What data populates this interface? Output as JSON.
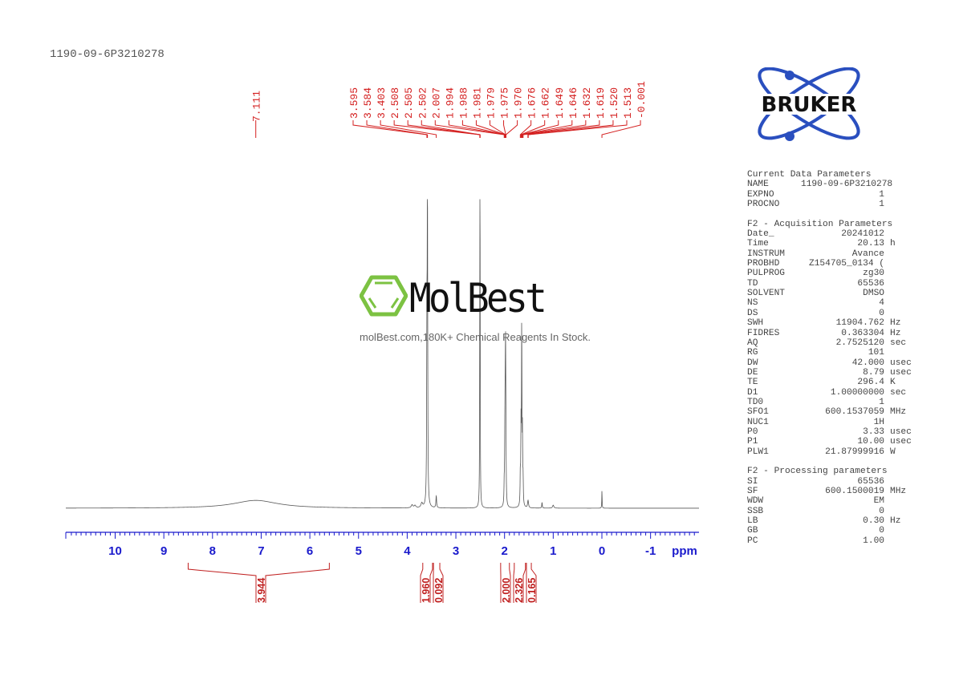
{
  "title": "1190-09-6P3210278",
  "logos": {
    "bruker": "BRUKER",
    "molbest_name": "MolBest",
    "molbest_tagline": "molBest.com,180K+ Chemical Reagents In Stock."
  },
  "colors": {
    "spectrum": "#555555",
    "peak_labels": "#d42020",
    "axis": "#1a1acc",
    "integrals": "#c02020",
    "bruker_blue": "#2a4fbf",
    "molbest_green": "#7cc242"
  },
  "chart_data": {
    "type": "line",
    "title": "",
    "xlabel": "ppm",
    "xlim": [
      11.0,
      -2.0
    ],
    "x_reversed": true,
    "x_ticks": [
      "10",
      "9",
      "8",
      "7",
      "6",
      "5",
      "4",
      "3",
      "2",
      "1",
      "0",
      "-1"
    ],
    "grid": false,
    "peaks": [
      {
        "ppm": 7.111,
        "intensity": 0.026,
        "width": 0.55
      },
      {
        "ppm": 3.9,
        "intensity": 0.01,
        "width": 0.02
      },
      {
        "ppm": 3.84,
        "intensity": 0.008,
        "width": 0.02
      },
      {
        "ppm": 3.7,
        "intensity": 0.015,
        "width": 0.02
      },
      {
        "ppm": 3.595,
        "intensity": 0.5,
        "width": 0.006
      },
      {
        "ppm": 3.584,
        "intensity": 1.0,
        "width": 0.006
      },
      {
        "ppm": 3.403,
        "intensity": 0.04,
        "width": 0.008
      },
      {
        "ppm": 2.508,
        "intensity": 0.3,
        "width": 0.004
      },
      {
        "ppm": 2.505,
        "intensity": 0.76,
        "width": 0.004
      },
      {
        "ppm": 2.502,
        "intensity": 0.3,
        "width": 0.004
      },
      {
        "ppm": 2.007,
        "intensity": 0.06,
        "width": 0.005
      },
      {
        "ppm": 1.994,
        "intensity": 0.18,
        "width": 0.005
      },
      {
        "ppm": 1.988,
        "intensity": 0.2,
        "width": 0.005
      },
      {
        "ppm": 1.981,
        "intensity": 0.25,
        "width": 0.005
      },
      {
        "ppm": 1.979,
        "intensity": 0.2,
        "width": 0.005
      },
      {
        "ppm": 1.975,
        "intensity": 0.15,
        "width": 0.005
      },
      {
        "ppm": 1.97,
        "intensity": 0.08,
        "width": 0.005
      },
      {
        "ppm": 1.676,
        "intensity": 0.1,
        "width": 0.005
      },
      {
        "ppm": 1.662,
        "intensity": 0.24,
        "width": 0.005
      },
      {
        "ppm": 1.649,
        "intensity": 0.33,
        "width": 0.005
      },
      {
        "ppm": 1.646,
        "intensity": 0.3,
        "width": 0.005
      },
      {
        "ppm": 1.632,
        "intensity": 0.22,
        "width": 0.005
      },
      {
        "ppm": 1.619,
        "intensity": 0.08,
        "width": 0.005
      },
      {
        "ppm": 1.52,
        "intensity": 0.015,
        "width": 0.01
      },
      {
        "ppm": 1.513,
        "intensity": 0.012,
        "width": 0.01
      },
      {
        "ppm": 1.23,
        "intensity": 0.02,
        "width": 0.006
      },
      {
        "ppm": 1.0,
        "intensity": 0.01,
        "width": 0.015
      },
      {
        "ppm": -0.001,
        "intensity": 0.06,
        "width": 0.004
      }
    ],
    "peak_labels": [
      "7.111",
      "3.595",
      "3.584",
      "3.403",
      "2.508",
      "2.505",
      "2.502",
      "2.007",
      "1.994",
      "1.988",
      "1.981",
      "1.979",
      "1.975",
      "1.970",
      "1.676",
      "1.662",
      "1.649",
      "1.646",
      "1.632",
      "1.619",
      "1.520",
      "1.513",
      "-0.001"
    ],
    "integrals": [
      {
        "from": 8.5,
        "to": 5.6,
        "value": "3.944"
      },
      {
        "from": 3.68,
        "to": 3.48,
        "value": "1.960"
      },
      {
        "from": 3.46,
        "to": 3.33,
        "value": "0.092"
      },
      {
        "from": 2.08,
        "to": 1.9,
        "value": "2.000"
      },
      {
        "from": 1.8,
        "to": 1.57,
        "value": "2.326"
      },
      {
        "from": 1.55,
        "to": 1.45,
        "value": "0.165"
      }
    ]
  },
  "parameters": {
    "current_header": "Current Data Parameters",
    "current": [
      [
        "NAME",
        "1190-09-6P3210278",
        ""
      ],
      [
        "EXPNO",
        "1",
        ""
      ],
      [
        "PROCNO",
        "1",
        ""
      ]
    ],
    "acq_header": "F2 - Acquisition Parameters",
    "acq": [
      [
        "Date_",
        "20241012",
        ""
      ],
      [
        "Time",
        "20.13",
        "h"
      ],
      [
        "INSTRUM",
        "Avance",
        ""
      ],
      [
        "PROBHD",
        "Z154705_0134 (",
        ""
      ],
      [
        "PULPROG",
        "zg30",
        ""
      ],
      [
        "TD",
        "65536",
        ""
      ],
      [
        "SOLVENT",
        "DMSO",
        ""
      ],
      [
        "NS",
        "4",
        ""
      ],
      [
        "DS",
        "0",
        ""
      ],
      [
        "SWH",
        "11904.762",
        "Hz"
      ],
      [
        "FIDRES",
        "0.363304",
        "Hz"
      ],
      [
        "AQ",
        "2.7525120",
        "sec"
      ],
      [
        "RG",
        "101",
        ""
      ],
      [
        "DW",
        "42.000",
        "usec"
      ],
      [
        "DE",
        "8.79",
        "usec"
      ],
      [
        "TE",
        "296.4",
        "K"
      ],
      [
        "D1",
        "1.00000000",
        "sec"
      ],
      [
        "TD0",
        "1",
        ""
      ],
      [
        "SFO1",
        "600.1537059",
        "MHz"
      ],
      [
        "NUC1",
        "1H",
        ""
      ],
      [
        "P0",
        "3.33",
        "usec"
      ],
      [
        "P1",
        "10.00",
        "usec"
      ],
      [
        "PLW1",
        "21.87999916",
        "W"
      ]
    ],
    "proc_header": "F2 - Processing parameters",
    "proc": [
      [
        "SI",
        "65536",
        ""
      ],
      [
        "SF",
        "600.1500019",
        "MHz"
      ],
      [
        "WDW",
        "EM",
        ""
      ],
      [
        "SSB",
        "0",
        ""
      ],
      [
        "LB",
        "0.30",
        "Hz"
      ],
      [
        "GB",
        "0",
        ""
      ],
      [
        "PC",
        "1.00",
        ""
      ]
    ]
  }
}
